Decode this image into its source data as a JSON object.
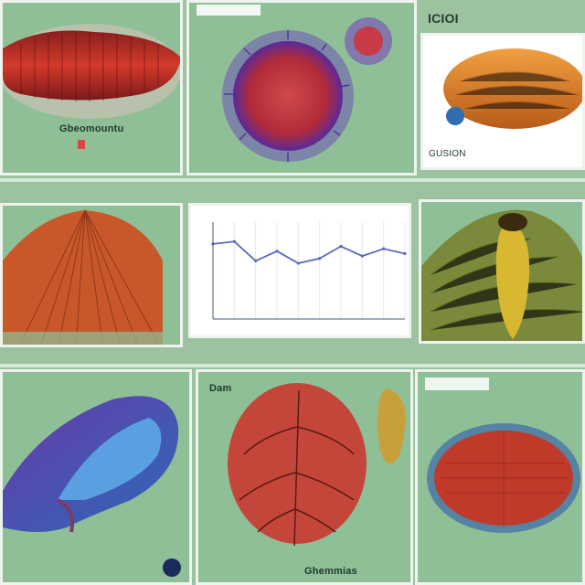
{
  "collage": {
    "title": "",
    "panels": [
      {
        "id": "p1",
        "label": "Gbeomountu",
        "caption": ""
      },
      {
        "id": "p2",
        "label": "",
        "caption": ""
      },
      {
        "id": "p3",
        "label": "GUSION",
        "corner": "ICIOI",
        "caption": ""
      },
      {
        "id": "p4",
        "label": "",
        "caption": ""
      },
      {
        "id": "p5",
        "label": "",
        "caption": ""
      },
      {
        "id": "p6",
        "label": "",
        "caption": ""
      },
      {
        "id": "p7",
        "label": "",
        "caption": ""
      },
      {
        "id": "p8",
        "label": "Dam",
        "caption": "Ghemmias"
      },
      {
        "id": "p9",
        "label": "",
        "caption": ""
      }
    ],
    "row_captions": {
      "row1": "",
      "row2": ""
    },
    "colors": {
      "background": "#9cc2a0",
      "panel": "#8fbf97",
      "accent_red": "#b8322a",
      "accent_purple": "#5c3aa8",
      "accent_orange": "#d9822b",
      "accent_olive": "#9a8f2a"
    }
  },
  "chart_data": {
    "type": "line",
    "title": "",
    "xlabel": "",
    "ylabel": "",
    "x": [
      1,
      2,
      3,
      4,
      5,
      6,
      7,
      8,
      9,
      10
    ],
    "series": [
      {
        "values": [
          62,
          64,
          48,
          56,
          46,
          50,
          60,
          52,
          58,
          54
        ]
      }
    ],
    "ylim": [
      0,
      80
    ],
    "grid": true,
    "legend": "none"
  }
}
